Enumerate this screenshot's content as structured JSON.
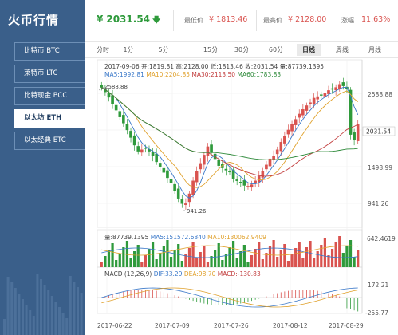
{
  "sidebar": {
    "brand": "火币行情",
    "items": [
      {
        "label": "比特币 BTC",
        "active": false
      },
      {
        "label": "莱特币 LTC",
        "active": false
      },
      {
        "label": "比特现金 BCC",
        "active": false
      },
      {
        "label": "以太坊 ETH",
        "active": true
      },
      {
        "label": "以太经典 ETC",
        "active": false
      }
    ]
  },
  "header": {
    "currency": "¥",
    "price": "2031.54",
    "low_label": "最低价",
    "low_value": "¥ 1813.46",
    "high_label": "最高价",
    "high_value": "¥ 2128.00",
    "change_label": "涨幅",
    "change_value": "11.63%"
  },
  "tabs": [
    "分时",
    "1分",
    "5分",
    "15分",
    "30分",
    "60分",
    "日线",
    "周线",
    "月线"
  ],
  "active_tab": "日线",
  "chart_info": {
    "ohlc": "2017-09-06  开:1819.81 高:2128.00 低:1813.46 收:2031.54 量:87739.1395",
    "ma_lines": [
      {
        "text": "MA5:1992.81",
        "color": "#3a78c9"
      },
      {
        "text": "MA10:2204.85",
        "color": "#e0a12c"
      },
      {
        "text": "MA30:2113.50",
        "color": "#c23d3d"
      },
      {
        "text": "MA60:1783.83",
        "color": "#2e8a3a"
      }
    ],
    "vol_line": [
      {
        "text": "量:87739.1395",
        "color": "#444444"
      },
      {
        "text": "MA5:151572.6840",
        "color": "#3a78c9"
      },
      {
        "text": "MA10:130062.9409",
        "color": "#e0a12c"
      }
    ],
    "macd_line": [
      {
        "text": "MACD (12,26,9)",
        "color": "#444444"
      },
      {
        "text": "DIF:33.29",
        "color": "#3a78c9"
      },
      {
        "text": "DEA:98.70",
        "color": "#e0a12c"
      },
      {
        "text": "MACD:-130.83",
        "color": "#c23d3d"
      }
    ]
  },
  "axis": {
    "price_ticks": [
      "2588.88",
      "2031.54",
      "1498.99",
      "941.26"
    ],
    "volume_tick": "642.4619",
    "macd_ticks": [
      "172.21",
      "-255.77"
    ],
    "dates": [
      "2017-06-22",
      "2017-07-09",
      "2017-07-26",
      "2017-08-12",
      "2017-08-29"
    ],
    "annot_high": "2588.88",
    "annot_low": "941.26"
  },
  "colors": {
    "up": "#d9534f",
    "down": "#2e9a3b",
    "sidebar_bg": "#3a5f8a",
    "ma5": "#3a78c9",
    "ma10": "#e0a12c",
    "ma30": "#c23d3d",
    "ma60": "#2e8a3a"
  },
  "chart_data": {
    "type": "candlestick",
    "period": "daily",
    "price_range": [
      941.26,
      2588.88
    ],
    "candles_close": [
      2520,
      2460,
      2390,
      2300,
      2220,
      2130,
      2050,
      1960,
      1860,
      1760,
      1680,
      1700,
      1720,
      1680,
      1620,
      1540,
      1470,
      1400,
      1330,
      1260,
      1160,
      1060,
      990,
      990,
      1120,
      1290,
      1420,
      1520,
      1630,
      1740,
      1660,
      1580,
      1490,
      1460,
      1430,
      1410,
      1320,
      1290,
      1270,
      1230,
      1220,
      1240,
      1290,
      1350,
      1420,
      1500,
      1580,
      1620,
      1700,
      1800,
      1880,
      1960,
      2040,
      2100,
      2170,
      2230,
      2280,
      2320,
      2380,
      2400,
      2420,
      2450,
      2480,
      2500,
      2520,
      2560,
      2540,
      2500,
      1900,
      1830,
      2031.54
    ],
    "volume_max": 642.4619,
    "macd_range": [
      -255.77,
      172.21
    ]
  }
}
